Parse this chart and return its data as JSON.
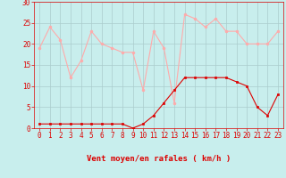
{
  "hours": [
    0,
    1,
    2,
    3,
    4,
    5,
    6,
    7,
    8,
    9,
    10,
    11,
    12,
    13,
    14,
    15,
    16,
    17,
    18,
    19,
    20,
    21,
    22,
    23
  ],
  "wind_gust": [
    19,
    24,
    21,
    12,
    16,
    23,
    20,
    19,
    18,
    18,
    9,
    23,
    19,
    6,
    27,
    26,
    24,
    26,
    23,
    23,
    20,
    20,
    20,
    23
  ],
  "wind_avg": [
    1,
    1,
    1,
    1,
    1,
    1,
    1,
    1,
    1,
    0,
    1,
    3,
    6,
    9,
    12,
    12,
    12,
    12,
    12,
    11,
    10,
    5,
    3,
    8
  ],
  "bg_color": "#c8eeed",
  "grid_color": "#aacccc",
  "line_gust_color": "#ffaaaa",
  "line_avg_color": "#dd0000",
  "text_color": "#dd0000",
  "xlabel": "Vent moyen/en rafales ( km/h )",
  "ylim": [
    0,
    30
  ],
  "yticks": [
    0,
    5,
    10,
    15,
    20,
    25,
    30
  ],
  "xlim": [
    -0.5,
    23.5
  ],
  "tick_fontsize": 5.5,
  "label_fontsize": 6.5,
  "wind_dirs": [
    "↓",
    "↓",
    "↙",
    "↓",
    "↓",
    "↓",
    "↘",
    "↓",
    "↙",
    "↓",
    "↓",
    "↓",
    "↙",
    "↓",
    "↙",
    "↓",
    "↙",
    "↓",
    "↓",
    "↘",
    "↘",
    "↘",
    "↘",
    "↘"
  ]
}
